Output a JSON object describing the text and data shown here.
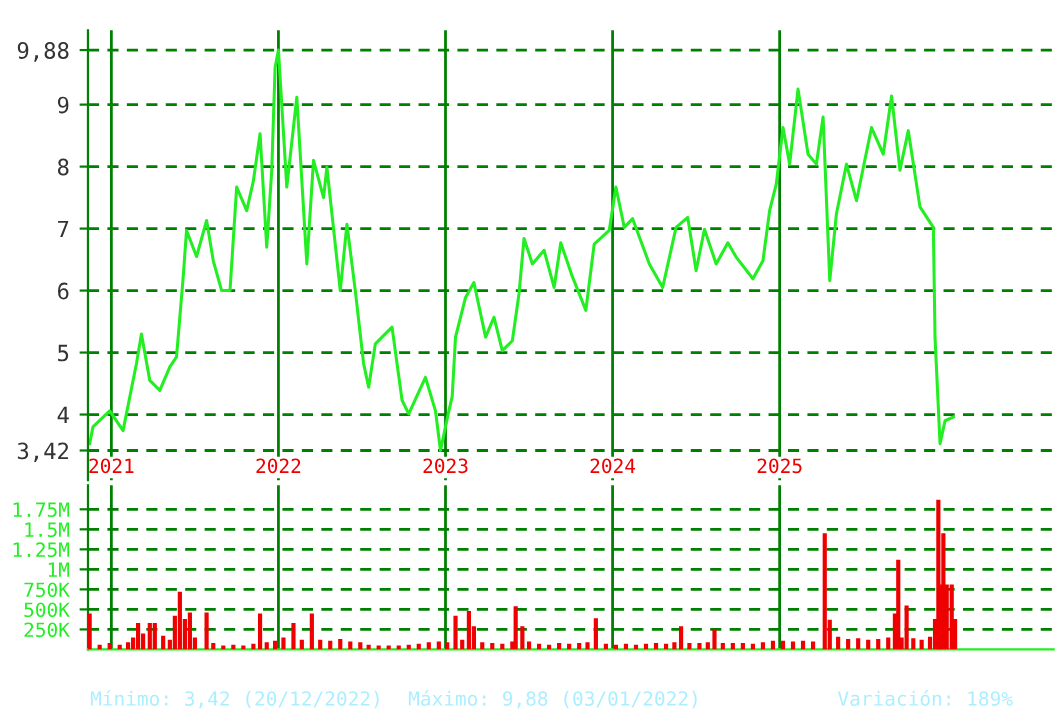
{
  "chart_data": [
    {
      "type": "line",
      "xlim": [
        2020.86,
        2026.64
      ],
      "ylim": [
        2.94,
        10.2
      ],
      "xticks": [
        {
          "value": 2021,
          "label": "2021"
        },
        {
          "value": 2022,
          "label": "2022"
        },
        {
          "value": 2023,
          "label": "2023"
        },
        {
          "value": 2024,
          "label": "2024"
        },
        {
          "value": 2025,
          "label": "2025"
        }
      ],
      "yticks": [
        {
          "value": 3.42,
          "label": "3,42"
        },
        4,
        5,
        6,
        7,
        8,
        9,
        {
          "value": 9.88,
          "label": "9,88"
        }
      ],
      "grid": true,
      "marker": "none",
      "line_style": "solid",
      "series": [
        {
          "color": "#22ee22",
          "x": [
            2020.87,
            2020.89,
            2020.99,
            2021.07,
            2021.15,
            2021.18,
            2021.23,
            2021.29,
            2021.35,
            2021.39,
            2021.43,
            2021.45,
            2021.51,
            2021.57,
            2021.61,
            2021.66,
            2021.71,
            2021.75,
            2021.81,
            2021.85,
            2021.89,
            2021.93,
            2021.96,
            2021.98,
            2022.0,
            2022.05,
            2022.11,
            2022.17,
            2022.21,
            2022.27,
            2022.29,
            2022.37,
            2022.41,
            2022.46,
            2022.51,
            2022.54,
            2022.58,
            2022.68,
            2022.74,
            2022.78,
            2022.88,
            2022.94,
            2022.97,
            2023.02,
            2023.04,
            2023.06,
            2023.12,
            2023.17,
            2023.24,
            2023.29,
            2023.34,
            2023.4,
            2023.44,
            2023.47,
            2023.52,
            2023.59,
            2023.65,
            2023.69,
            2023.76,
            2023.84,
            2023.89,
            2023.98,
            2024.02,
            2024.07,
            2024.12,
            2024.22,
            2024.3,
            2024.38,
            2024.45,
            2024.5,
            2024.55,
            2024.62,
            2024.69,
            2024.74,
            2024.84,
            2024.9,
            2024.94,
            2024.98,
            2025.02,
            2025.06,
            2025.11,
            2025.17,
            2025.22,
            2025.26,
            2025.3,
            2025.34,
            2025.4,
            2025.46,
            2025.55,
            2025.62,
            2025.67,
            2025.72,
            2025.77,
            2025.84,
            2025.92,
            2025.93,
            2025.96,
            2025.99,
            2026.04
          ],
          "values": [
            3.53,
            3.8,
            4.06,
            3.74,
            4.82,
            5.3,
            4.55,
            4.39,
            4.77,
            4.93,
            6.22,
            6.97,
            6.55,
            7.13,
            6.48,
            6.0,
            6.0,
            7.67,
            7.29,
            7.77,
            8.53,
            6.7,
            7.94,
            9.6,
            9.88,
            7.67,
            9.12,
            6.43,
            8.1,
            7.5,
            7.99,
            6.0,
            7.07,
            6.0,
            4.82,
            4.44,
            5.14,
            5.41,
            4.23,
            4.01,
            4.6,
            4.06,
            3.42,
            4.06,
            4.29,
            5.25,
            5.89,
            6.13,
            5.25,
            5.57,
            5.03,
            5.19,
            5.95,
            6.84,
            6.43,
            6.65,
            6.05,
            6.77,
            6.22,
            5.68,
            6.75,
            6.97,
            7.67,
            7.02,
            7.16,
            6.43,
            6.05,
            7.02,
            7.18,
            6.32,
            6.99,
            6.43,
            6.77,
            6.54,
            6.19,
            6.48,
            7.29,
            7.72,
            8.63,
            8.04,
            9.25,
            8.2,
            8.04,
            8.8,
            6.16,
            7.24,
            8.04,
            7.45,
            8.63,
            8.2,
            9.14,
            7.94,
            8.58,
            7.35,
            7.02,
            5.25,
            3.53,
            3.9,
            3.96
          ]
        }
      ],
      "annotations": [
        "Mínimo: 3,42 (20/12/2022)",
        "Máximo: 9,88 (03/01/2022)",
        "Variación: 189%"
      ]
    },
    {
      "type": "bar",
      "xlim": [
        2020.86,
        2026.64
      ],
      "ylim": [
        0,
        2050000
      ],
      "tick_labels": "y",
      "xticks": [
        {
          "value": 2021,
          "label": null
        },
        {
          "value": 2022,
          "label": null
        },
        {
          "value": 2023,
          "label": null
        },
        {
          "value": 2024,
          "label": null
        },
        {
          "value": 2025,
          "label": null
        }
      ],
      "yticks": [
        {
          "value": 250000,
          "label": "250K"
        },
        {
          "value": 500000,
          "label": "500K"
        },
        {
          "value": 750000,
          "label": "750K"
        },
        {
          "value": 1000000,
          "label": "1M"
        },
        {
          "value": 1250000,
          "label": "1.25M"
        },
        {
          "value": 1500000,
          "label": "1.5M"
        },
        {
          "value": 1750000,
          "label": "1.75M"
        }
      ],
      "grid": true,
      "series": [
        {
          "color": "#ee0000",
          "x": [
            2020.87,
            2020.93,
            2020.99,
            2021.05,
            2021.1,
            2021.13,
            2021.16,
            2021.19,
            2021.23,
            2021.26,
            2021.31,
            2021.35,
            2021.38,
            2021.41,
            2021.44,
            2021.47,
            2021.5,
            2021.57,
            2021.61,
            2021.67,
            2021.73,
            2021.79,
            2021.85,
            2021.89,
            2021.93,
            2021.98,
            2022.03,
            2022.09,
            2022.14,
            2022.2,
            2022.25,
            2022.31,
            2022.37,
            2022.43,
            2022.49,
            2022.54,
            2022.6,
            2022.66,
            2022.72,
            2022.78,
            2022.84,
            2022.9,
            2022.96,
            2023.01,
            2023.06,
            2023.1,
            2023.14,
            2023.17,
            2023.22,
            2023.28,
            2023.34,
            2023.4,
            2023.42,
            2023.46,
            2023.5,
            2023.56,
            2023.62,
            2023.68,
            2023.74,
            2023.8,
            2023.85,
            2023.9,
            2023.96,
            2024.02,
            2024.08,
            2024.14,
            2024.2,
            2024.26,
            2024.32,
            2024.37,
            2024.41,
            2024.46,
            2024.52,
            2024.57,
            2024.61,
            2024.66,
            2024.72,
            2024.78,
            2024.84,
            2024.9,
            2024.96,
            2025.02,
            2025.08,
            2025.14,
            2025.2,
            2025.27,
            2025.3,
            2025.35,
            2025.41,
            2025.47,
            2025.53,
            2025.59,
            2025.65,
            2025.69,
            2025.71,
            2025.73,
            2025.76,
            2025.8,
            2025.85,
            2025.9,
            2025.93,
            2025.95,
            2025.96,
            2025.98,
            2026.0,
            2026.03,
            2026.05
          ],
          "values": [
            450000,
            60000,
            80000,
            60000,
            90000,
            150000,
            330000,
            200000,
            330000,
            330000,
            170000,
            120000,
            420000,
            720000,
            380000,
            460000,
            150000,
            460000,
            80000,
            50000,
            60000,
            50000,
            70000,
            450000,
            90000,
            110000,
            150000,
            330000,
            120000,
            450000,
            120000,
            110000,
            130000,
            100000,
            90000,
            60000,
            50000,
            50000,
            50000,
            60000,
            70000,
            90000,
            100000,
            90000,
            420000,
            120000,
            480000,
            290000,
            90000,
            80000,
            70000,
            100000,
            540000,
            290000,
            100000,
            70000,
            60000,
            80000,
            70000,
            80000,
            90000,
            390000,
            70000,
            60000,
            70000,
            60000,
            70000,
            80000,
            70000,
            90000,
            290000,
            80000,
            80000,
            90000,
            250000,
            80000,
            80000,
            80000,
            70000,
            90000,
            110000,
            110000,
            100000,
            110000,
            100000,
            1450000,
            370000,
            160000,
            130000,
            140000,
            120000,
            130000,
            150000,
            450000,
            1120000,
            150000,
            550000,
            140000,
            120000,
            160000,
            380000,
            1870000,
            810000,
            1450000,
            810000,
            810000,
            380000
          ]
        }
      ]
    }
  ]
}
